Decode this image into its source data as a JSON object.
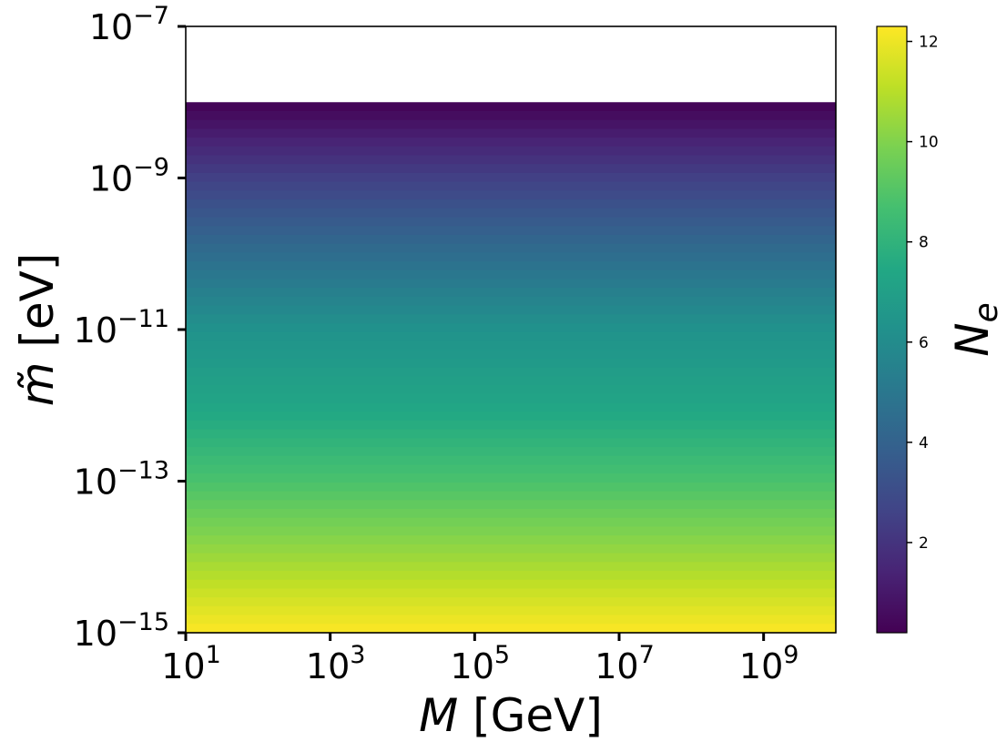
{
  "chart_data": {
    "type": "heatmap",
    "x": {
      "label": "M [GeV]",
      "label_var": "M",
      "label_unit": " [GeV]",
      "scale": "log",
      "range": [
        10,
        10000000000.0
      ],
      "ticks": [
        {
          "value": 10,
          "base": "10",
          "exp": "1"
        },
        {
          "value": 1000,
          "base": "10",
          "exp": "3"
        },
        {
          "value": 100000,
          "base": "10",
          "exp": "5"
        },
        {
          "value": 10000000,
          "base": "10",
          "exp": "7"
        },
        {
          "value": 1000000000,
          "base": "10",
          "exp": "9"
        }
      ]
    },
    "y": {
      "label": "m̃ [eV]",
      "label_var": "m̃",
      "label_unit": " [eV]",
      "scale": "log",
      "range": [
        1e-15,
        1e-07
      ],
      "ticks": [
        {
          "value": 1e-15,
          "base": "10",
          "exp": "−15"
        },
        {
          "value": 1e-13,
          "base": "10",
          "exp": "−13"
        },
        {
          "value": 1e-11,
          "base": "10",
          "exp": "−11"
        },
        {
          "value": 1e-09,
          "base": "10",
          "exp": "−9"
        },
        {
          "value": 1e-07,
          "base": "10",
          "exp": "−7"
        }
      ]
    },
    "colorbar": {
      "label": "N",
      "label_sub": "e",
      "range": [
        0.2,
        12.3
      ],
      "ticks": [
        "2",
        "4",
        "6",
        "8",
        "10",
        "12"
      ],
      "colormap": "viridis"
    },
    "data_region": {
      "m_tilde_min": 1e-15,
      "m_tilde_max": 1e-08,
      "empty_above": 1e-08
    },
    "Ne_vs_m_tilde": [
      {
        "m_tilde": 1e-08,
        "Ne": 0.2
      },
      {
        "m_tilde": 1e-09,
        "Ne": 2.5
      },
      {
        "m_tilde": 1e-10,
        "Ne": 4.5
      },
      {
        "m_tilde": 1e-11,
        "Ne": 6.3
      },
      {
        "m_tilde": 1e-12,
        "Ne": 7.3
      },
      {
        "m_tilde": 1e-13,
        "Ne": 8.8
      },
      {
        "m_tilde": 1e-14,
        "Ne": 10.5
      },
      {
        "m_tilde": 1e-15,
        "Ne": 12.3
      }
    ],
    "grid": false
  },
  "colors": {
    "background": "#ffffff",
    "axis": "#000000"
  }
}
